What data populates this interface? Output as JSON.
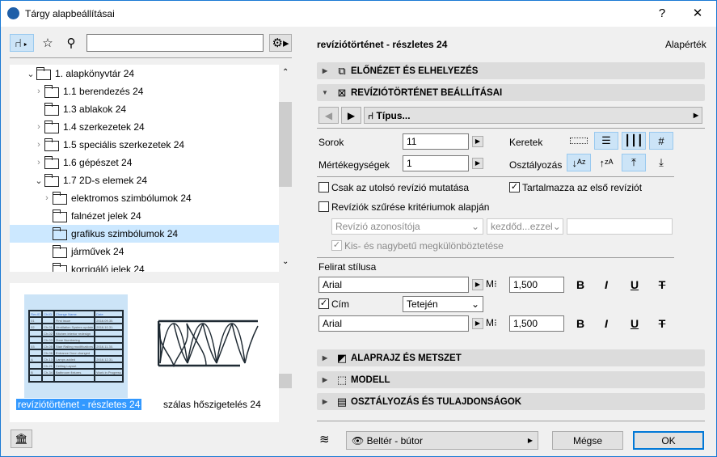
{
  "window": {
    "title": "Tárgy alapbeállításai",
    "help": "?",
    "close": "✕"
  },
  "left": {
    "search_placeholder": "",
    "tree": [
      {
        "label": "1. alapkönyvtár 24",
        "level": 0,
        "state": "expanded"
      },
      {
        "label": "1.1 berendezés 24",
        "level": 1,
        "state": "collapsed"
      },
      {
        "label": "1.3 ablakok 24",
        "level": 1,
        "state": "none"
      },
      {
        "label": "1.4 szerkezetek 24",
        "level": 1,
        "state": "collapsed"
      },
      {
        "label": "1.5 speciális szerkezetek 24",
        "level": 1,
        "state": "collapsed"
      },
      {
        "label": "1.6 gépészet 24",
        "level": 1,
        "state": "collapsed"
      },
      {
        "label": "1.7 2D-s elemek 24",
        "level": 1,
        "state": "expanded"
      },
      {
        "label": "elektromos szimbólumok 24",
        "level": 2,
        "state": "collapsed"
      },
      {
        "label": "falnézet jelek 24",
        "level": 2,
        "state": "none"
      },
      {
        "label": "grafikus szimbólumok 24",
        "level": 2,
        "state": "none",
        "selected": true
      },
      {
        "label": "járművek 24",
        "level": 2,
        "state": "none"
      },
      {
        "label": "korrigáló jelek 24",
        "level": 2,
        "state": "none"
      }
    ],
    "previews": [
      {
        "label": "revíziótörténet - részletes 24",
        "selected": true
      },
      {
        "label": "szálas hőszigetelés 24",
        "selected": false
      }
    ],
    "thumb_table": [
      [
        "Rev.ID",
        "Ch.ID",
        "Change Name",
        "Date"
      ],
      [
        "01",
        "",
        "First issue",
        "2016.09.30."
      ],
      [
        "02",
        "Ch-01",
        "Ventilation System update",
        "2016.10.31."
      ],
      [
        "",
        "Ch-02",
        "Kitchen interior redesign",
        ""
      ],
      [
        "",
        "Ch-03",
        "Zone Numbering",
        ""
      ],
      [
        "03",
        "Ch-05",
        "Stair Railing modifications",
        "2016.11.30."
      ],
      [
        "",
        "Ch-06",
        "Entrance Door changed",
        ""
      ],
      [
        "A",
        "Ch-13",
        "Lamps added",
        "2016.12.31."
      ],
      [
        "",
        "Ch-21",
        "Ceiling Layout",
        ""
      ],
      [
        "B",
        "Ch-34",
        "Bathroom fixtures",
        "Work in Progress"
      ],
      [
        "",
        "",
        "",
        ""
      ]
    ]
  },
  "right": {
    "header": "revíziótörténet - részletes 24",
    "default": "Alapérték",
    "sections": {
      "preview": "ELŐNÉZET ÉS ELHELYEZÉS",
      "settings": "REVÍZIÓTÖRTÉNET BEÁLLÍTÁSAI",
      "plan": "ALAPRAJZ ÉS METSZET",
      "model": "MODELL",
      "classification": "OSZTÁLYOZÁS ÉS TULAJDONSÁGOK"
    },
    "type_label": "Típus...",
    "rows_label": "Sorok",
    "rows_value": "11",
    "units_label": "Mértékegységek",
    "units_value": "1",
    "frames_label": "Keretek",
    "sort_label": "Osztályozás",
    "only_last": {
      "label": "Csak az utolsó revízió mutatása",
      "checked": false
    },
    "include_first": {
      "label": "Tartalmazza az első revíziót",
      "checked": true
    },
    "filter": {
      "label": "Revíziók szűrése kritériumok alapján",
      "checked": false
    },
    "filter_field": "Revízió azonosítója",
    "filter_op": "kezdőd...ezzel",
    "filter_value": "",
    "case_sensitive": {
      "label": "Kis- és nagybetű megkülönböztetése",
      "checked": true
    },
    "label_style": "Felirat stílusa",
    "font1": "Arial",
    "size1": "1,500",
    "title_check": {
      "label": "Cím",
      "checked": true
    },
    "title_pos": "Tetején",
    "font2": "Arial",
    "size2": "1,500",
    "fmt": {
      "bold": "B",
      "italic": "I",
      "underline": "U",
      "strike": "T"
    },
    "layer": "Beltér - bútor",
    "cancel": "Mégse",
    "ok": "OK"
  }
}
